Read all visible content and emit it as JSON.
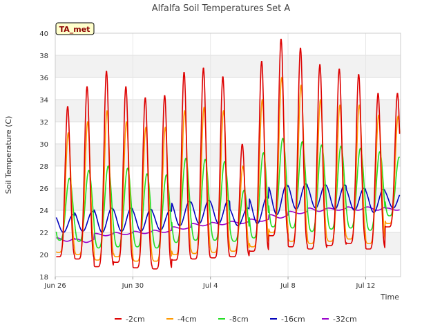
{
  "chart_data": {
    "type": "line",
    "title": "Alfalfa Soil Temperatures Set A",
    "badge": "TA_met",
    "xlabel": "Time",
    "ylabel": "Soil Temperature (C)",
    "ylim": [
      18,
      40
    ],
    "yticks": [
      18,
      20,
      22,
      24,
      26,
      28,
      30,
      32,
      34,
      36,
      38,
      40
    ],
    "xlim_day": [
      0,
      17.8
    ],
    "xticks": [
      {
        "day": 0,
        "label": "Jun 26"
      },
      {
        "day": 4,
        "label": "Jun 30"
      },
      {
        "day": 8,
        "label": "Jul 4"
      },
      {
        "day": 12,
        "label": "Jul 8"
      },
      {
        "day": 16,
        "label": "Jul 12"
      }
    ],
    "grid": true,
    "legend_position": "bottom",
    "days": [
      0,
      1,
      2,
      3,
      4,
      5,
      6,
      7,
      8,
      9,
      10,
      11,
      12,
      13,
      14,
      15,
      16,
      17
    ],
    "series": [
      {
        "name": "-2cm",
        "color": "#dd0000",
        "peak_phase": 0.64,
        "sharpness": 3.0,
        "max": [
          33.4,
          35.2,
          36.6,
          35.2,
          34.2,
          34.4,
          36.5,
          36.9,
          36.1,
          30.0,
          37.5,
          39.5,
          38.7,
          37.2,
          36.8,
          36.3,
          34.6,
          34.6
        ],
        "min": [
          19.8,
          19.6,
          18.9,
          19.3,
          18.8,
          18.7,
          19.5,
          19.6,
          19.7,
          19.8,
          20.3,
          21.7,
          20.7,
          20.5,
          20.8,
          21.0,
          20.5,
          22.5
        ]
      },
      {
        "name": "-4cm",
        "color": "#ff9900",
        "peak_phase": 0.67,
        "sharpness": 2.6,
        "max": [
          31.0,
          32.0,
          33.0,
          32.0,
          31.5,
          31.5,
          33.0,
          33.3,
          33.0,
          28.0,
          34.0,
          36.0,
          35.3,
          34.0,
          33.5,
          33.5,
          32.6,
          32.5
        ],
        "min": [
          20.2,
          20.0,
          19.5,
          19.8,
          19.4,
          19.4,
          20.0,
          20.1,
          20.2,
          20.3,
          20.7,
          22.0,
          21.2,
          21.0,
          21.2,
          21.4,
          21.0,
          22.8
        ]
      },
      {
        "name": "-8cm",
        "color": "#22dd22",
        "peak_phase": 0.73,
        "sharpness": 1.6,
        "max": [
          26.9,
          27.6,
          28.0,
          27.8,
          27.3,
          27.2,
          28.7,
          28.6,
          28.4,
          25.8,
          29.2,
          30.5,
          30.2,
          29.9,
          29.8,
          29.6,
          29.3,
          28.8
        ],
        "min": [
          21.3,
          21.2,
          20.6,
          20.7,
          20.7,
          20.6,
          21.1,
          21.3,
          21.3,
          21.2,
          21.5,
          22.5,
          22.4,
          22.1,
          22.3,
          22.4,
          22.2,
          23.5
        ]
      },
      {
        "name": "-16cm",
        "color": "#0000bb",
        "peak_phase": 0.92,
        "sharpness": 1.0,
        "max": [
          23.6,
          23.9,
          24.2,
          24.2,
          24.1,
          24.0,
          24.8,
          24.9,
          24.9,
          24.2,
          25.2,
          26.3,
          26.4,
          26.3,
          26.3,
          26.0,
          25.9,
          25.8
        ],
        "min": [
          22.0,
          22.1,
          22.0,
          22.1,
          22.1,
          22.2,
          22.6,
          22.8,
          22.8,
          22.6,
          22.8,
          23.6,
          24.1,
          24.2,
          24.1,
          24.0,
          23.8,
          24.2
        ]
      },
      {
        "name": "-32cm",
        "color": "#9900cc",
        "peak_phase": 0.1,
        "sharpness": 1.0,
        "max": [
          21.5,
          21.4,
          21.9,
          22.0,
          22.1,
          22.2,
          22.5,
          22.8,
          22.9,
          23.0,
          23.2,
          23.6,
          23.9,
          24.2,
          24.2,
          24.3,
          24.3,
          24.2
        ],
        "min": [
          21.2,
          21.1,
          21.7,
          21.8,
          21.9,
          22.0,
          22.3,
          22.6,
          22.7,
          22.8,
          23.0,
          23.3,
          23.7,
          23.9,
          24.0,
          24.0,
          24.0,
          24.0
        ]
      }
    ]
  }
}
